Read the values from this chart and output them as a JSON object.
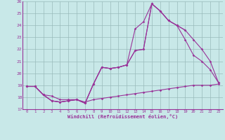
{
  "xlabel": "Windchill (Refroidissement éolien,°C)",
  "background_color": "#c8e8e8",
  "line_color": "#993399",
  "grid_color": "#99bbbb",
  "xlim_min": -0.5,
  "xlim_max": 23.5,
  "ylim_min": 17,
  "ylim_max": 26,
  "yticks": [
    17,
    18,
    19,
    20,
    21,
    22,
    23,
    24,
    25,
    26
  ],
  "xticks": [
    0,
    1,
    2,
    3,
    4,
    5,
    6,
    7,
    8,
    9,
    10,
    11,
    12,
    13,
    14,
    15,
    16,
    17,
    18,
    19,
    20,
    21,
    22,
    23
  ],
  "lines": [
    {
      "x": [
        0,
        1,
        2,
        3,
        4,
        5,
        6,
        7,
        8,
        9,
        10,
        11,
        12,
        13,
        14,
        15,
        16,
        17,
        18,
        19
      ],
      "y": [
        18.9,
        18.9,
        18.2,
        17.7,
        17.6,
        17.7,
        17.8,
        17.5,
        19.1,
        20.5,
        20.4,
        20.5,
        20.7,
        23.7,
        24.3,
        25.8,
        25.2,
        24.4,
        24.0,
        23.6
      ]
    },
    {
      "x": [
        0,
        1,
        2,
        3,
        4,
        5,
        6,
        7,
        8,
        9,
        10,
        11,
        12,
        13,
        14,
        15,
        16,
        17,
        18,
        19,
        20,
        21,
        22,
        23
      ],
      "y": [
        18.9,
        18.9,
        18.2,
        17.7,
        17.6,
        17.7,
        17.8,
        17.5,
        19.1,
        20.5,
        20.4,
        20.5,
        20.7,
        21.9,
        22.0,
        25.8,
        25.2,
        24.4,
        24.0,
        22.8,
        21.5,
        21.0,
        20.3,
        19.2
      ]
    },
    {
      "x": [
        0,
        1,
        2,
        3,
        4,
        5,
        6,
        7,
        8,
        9,
        10,
        11,
        12,
        13,
        14,
        15,
        16,
        17,
        18,
        19,
        20,
        21,
        22,
        23
      ],
      "y": [
        18.9,
        18.9,
        18.2,
        17.7,
        17.6,
        17.7,
        17.8,
        17.5,
        19.1,
        20.5,
        20.4,
        20.5,
        20.7,
        21.9,
        22.0,
        25.8,
        25.2,
        24.4,
        24.0,
        23.6,
        22.8,
        22.0,
        21.0,
        19.2
      ]
    },
    {
      "x": [
        0,
        1,
        2,
        3,
        4,
        5,
        6,
        7,
        8,
        9,
        10,
        11,
        12,
        13,
        14,
        15,
        16,
        17,
        18,
        19,
        20,
        21,
        22,
        23
      ],
      "y": [
        18.9,
        18.9,
        18.2,
        18.1,
        17.8,
        17.8,
        17.8,
        17.6,
        17.8,
        17.9,
        18.0,
        18.1,
        18.2,
        18.3,
        18.4,
        18.5,
        18.6,
        18.7,
        18.8,
        18.9,
        19.0,
        19.0,
        19.0,
        19.1
      ]
    }
  ]
}
